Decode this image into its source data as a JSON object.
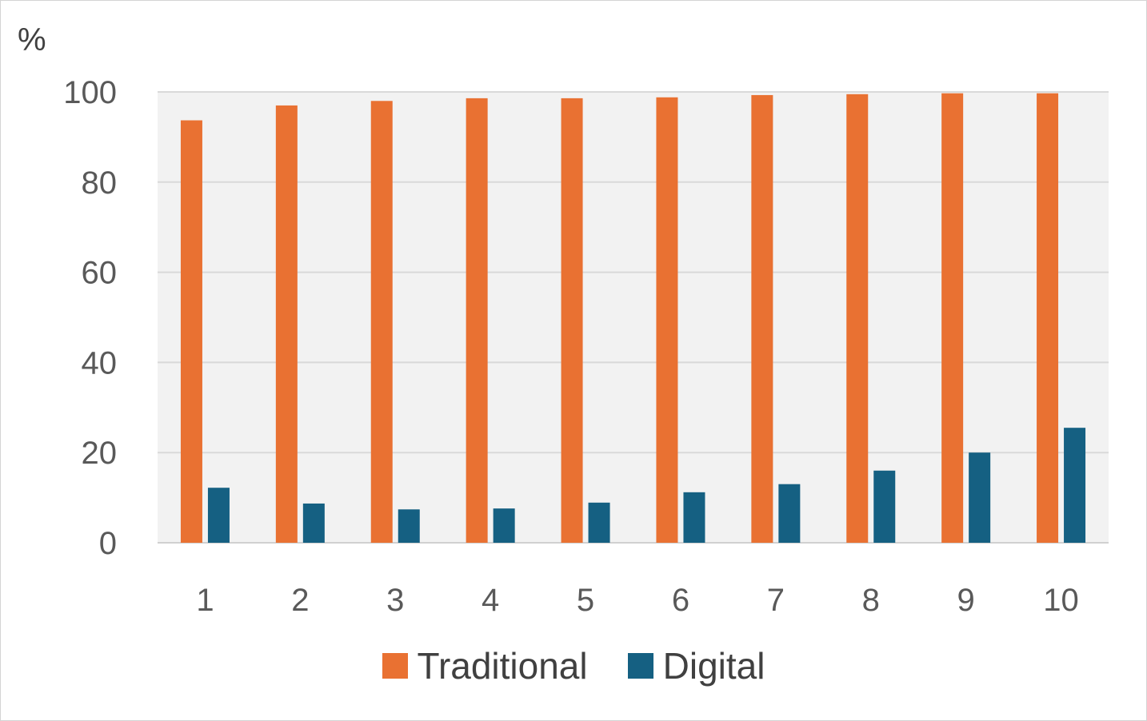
{
  "chart_data": {
    "type": "bar",
    "title": "",
    "xlabel": "",
    "ylabel": "%",
    "ylim": [
      0,
      100
    ],
    "yticks": [
      0,
      20,
      40,
      60,
      80,
      100
    ],
    "grid": true,
    "legend_position": "bottom",
    "categories": [
      "1",
      "2",
      "3",
      "4",
      "5",
      "6",
      "7",
      "8",
      "9",
      "10"
    ],
    "series": [
      {
        "name": "Traditional",
        "color": "#E97132",
        "values": [
          93.7,
          97.0,
          98.0,
          98.6,
          98.6,
          98.8,
          99.3,
          99.5,
          99.7,
          99.7
        ]
      },
      {
        "name": "Digital",
        "color": "#156082",
        "values": [
          12.2,
          8.7,
          7.4,
          7.6,
          8.9,
          11.2,
          13.0,
          16.0,
          20.0,
          25.5
        ]
      }
    ]
  }
}
